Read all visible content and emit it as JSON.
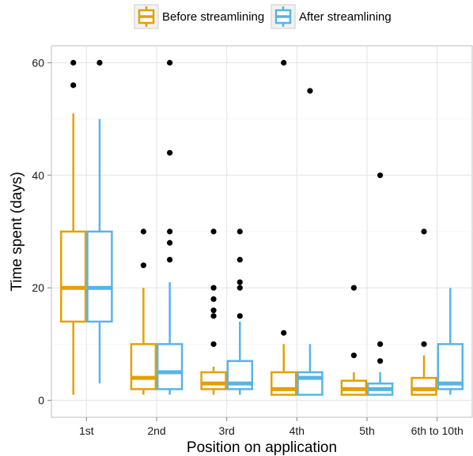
{
  "chart_data": {
    "type": "boxplot",
    "title": "",
    "xlabel": "Position on application",
    "ylabel": "Time spent (days)",
    "ylim": [
      -3,
      63
    ],
    "yticks": [
      0,
      20,
      40,
      60
    ],
    "grid": true,
    "legend_position": "top",
    "categories": [
      "1st",
      "2nd",
      "3rd",
      "4th",
      "5th",
      "6th to 10th"
    ],
    "series": [
      {
        "name": "Before streamlining",
        "color": "#E69F00",
        "boxes": [
          {
            "low": 1,
            "q1": 14,
            "median": 20,
            "q3": 30,
            "high": 51,
            "outliers": [
              56,
              60
            ]
          },
          {
            "low": 1,
            "q1": 2,
            "median": 4,
            "q3": 10,
            "high": 20,
            "outliers": [
              24,
              30
            ]
          },
          {
            "low": 1,
            "q1": 2,
            "median": 3,
            "q3": 5,
            "high": 6,
            "outliers": [
              10,
              15,
              16,
              18,
              20,
              30
            ]
          },
          {
            "low": 1,
            "q1": 1,
            "median": 2,
            "q3": 5,
            "high": 10,
            "outliers": [
              12,
              60
            ]
          },
          {
            "low": 1,
            "q1": 1,
            "median": 2,
            "q3": 3.5,
            "high": 5,
            "outliers": [
              8,
              20
            ]
          },
          {
            "low": 1,
            "q1": 1,
            "median": 2,
            "q3": 4,
            "high": 8,
            "outliers": [
              10,
              30
            ]
          }
        ]
      },
      {
        "name": "After streamlining",
        "color": "#56B4E9",
        "boxes": [
          {
            "low": 3,
            "q1": 14,
            "median": 20,
            "q3": 30,
            "high": 50,
            "outliers": [
              60
            ]
          },
          {
            "low": 1,
            "q1": 2,
            "median": 5,
            "q3": 10,
            "high": 21,
            "outliers": [
              25,
              28,
              30,
              44,
              60
            ]
          },
          {
            "low": 1,
            "q1": 2,
            "median": 3,
            "q3": 7,
            "high": 14,
            "outliers": [
              15,
              20,
              21,
              25,
              30
            ]
          },
          {
            "low": 1,
            "q1": 1,
            "median": 4,
            "q3": 5,
            "high": 10,
            "outliers": [
              55
            ]
          },
          {
            "low": 1,
            "q1": 1,
            "median": 2,
            "q3": 3,
            "high": 5,
            "outliers": [
              7,
              10,
              40
            ]
          },
          {
            "low": 1,
            "q1": 2,
            "median": 3,
            "q3": 10,
            "high": 20,
            "outliers": []
          }
        ]
      }
    ]
  }
}
